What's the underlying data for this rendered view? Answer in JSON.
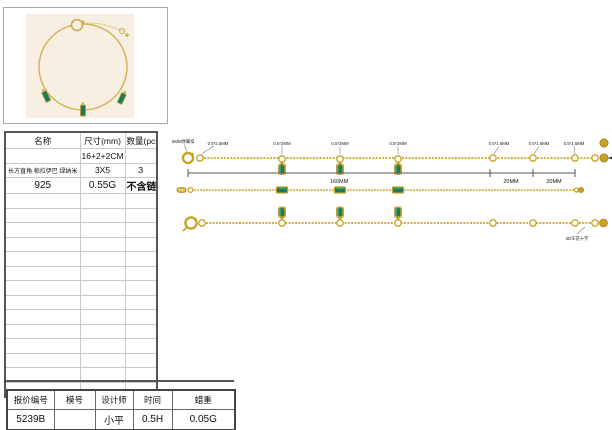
{
  "colors": {
    "gold": "#C9A227",
    "gold_light": "#E8CC5F",
    "gold_dark": "#8F6D14",
    "stone_green": "#1E7A50",
    "stone_green_light": "#3FA97B",
    "photo_bg": "#F6EFE2",
    "line_gray": "#555555",
    "border_dark": "#444444",
    "border_light": "#c9c9c9"
  },
  "spec_table": {
    "headers": [
      "名称",
      "尺寸(mm)",
      "数量(pcs)"
    ],
    "rows": [
      {
        "name": "",
        "size": "16+2+2CM",
        "qty": ""
      },
      {
        "name": "长方直角 帕拉伊巴 绿纳米",
        "size": "3X5",
        "qty": "3"
      },
      {
        "name": "925",
        "size": "0.55G",
        "qty": "不含链"
      }
    ],
    "empty_rows": 14
  },
  "drawing": {
    "clasp_label": "5MM弹簧扣",
    "jump_ring_labels": [
      "0.5*2.5MM",
      "0.5*2MM",
      "0.5*2MM",
      "0.5*2MM",
      "0.5*1.5MM",
      "0.5*1.5MM",
      "0.5*1.5MM"
    ],
    "dim_main": "160MM",
    "dim_ext1": "20MM",
    "dim_ext2": "20MM",
    "end_bead_label": "3D车花十字"
  },
  "quote_table": {
    "headers": [
      "报价编号",
      "模号",
      "设计师",
      "时间",
      "蜡重"
    ],
    "values": [
      "5239B",
      "",
      "小平",
      "0.5H",
      "0.05G"
    ]
  }
}
